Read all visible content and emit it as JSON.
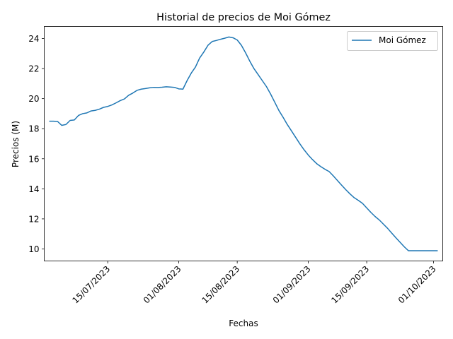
{
  "chart_data": {
    "type": "line",
    "title": "Historial de precios de Moi Gómez",
    "xlabel": "Fechas",
    "ylabel": "Precios (M)",
    "ylim": [
      9.2,
      24.8
    ],
    "x_tick_labels": [
      "15/07/2023",
      "01/08/2023",
      "15/08/2023",
      "01/09/2023",
      "15/09/2023",
      "01/10/2023"
    ],
    "x_tick_days": [
      14,
      31,
      45,
      62,
      76,
      92
    ],
    "y_ticks": [
      10,
      12,
      14,
      16,
      18,
      20,
      22,
      24
    ],
    "legend": {
      "position": "top-right",
      "entries": [
        "Moi Gómez"
      ]
    },
    "colors": {
      "line": "#1f77b4"
    },
    "series": [
      {
        "name": "Moi Gómez",
        "x_days": [
          0.0,
          1.0,
          2.0,
          3.0,
          4.0,
          5.0,
          6.0,
          7.0,
          8.0,
          9.0,
          10.0,
          11.0,
          12.0,
          13.0,
          14.0,
          15.0,
          16.0,
          17.0,
          18.0,
          19.0,
          20.0,
          21.0,
          22.0,
          23.0,
          24.0,
          25.0,
          26.0,
          27.0,
          28.0,
          29.0,
          30.0,
          31.0,
          32.0,
          33.0,
          34.0,
          35.0,
          36.0,
          37.0,
          38.0,
          39.0,
          40.0,
          41.0,
          42.0,
          43.0,
          44.0,
          45.0,
          46.0,
          47.0,
          48.0,
          49.0,
          50.0,
          51.0,
          52.0,
          53.0,
          54.0,
          55.0,
          56.0,
          57.0,
          58.0,
          59.0,
          60.0,
          61.0,
          62.0,
          63.0,
          64.0,
          65.0,
          66.0,
          67.0,
          68.0,
          69.0,
          70.0,
          71.0,
          72.0,
          73.0,
          74.0,
          75.0,
          76.0,
          77.0,
          78.0,
          79.0,
          80.0,
          81.0,
          82.0,
          83.0,
          84.0,
          85.0,
          86.0,
          87.0,
          88.0,
          89.0,
          90.0,
          91.0,
          92.0,
          93.0
        ],
        "values": [
          18.5,
          18.5,
          18.48,
          18.22,
          18.28,
          18.55,
          18.58,
          18.88,
          19.0,
          19.05,
          19.18,
          19.22,
          19.3,
          19.42,
          19.48,
          19.58,
          19.72,
          19.87,
          19.98,
          20.22,
          20.37,
          20.55,
          20.63,
          20.67,
          20.72,
          20.75,
          20.74,
          20.76,
          20.79,
          20.77,
          20.75,
          20.65,
          20.63,
          21.2,
          21.7,
          22.1,
          22.7,
          23.1,
          23.55,
          23.8,
          23.87,
          23.95,
          24.02,
          24.1,
          24.05,
          23.9,
          23.55,
          23.05,
          22.5,
          22.0,
          21.6,
          21.2,
          20.8,
          20.3,
          19.75,
          19.2,
          18.75,
          18.27,
          17.85,
          17.42,
          16.99,
          16.6,
          16.25,
          15.95,
          15.68,
          15.48,
          15.3,
          15.15,
          14.86,
          14.55,
          14.24,
          13.94,
          13.66,
          13.41,
          13.23,
          13.03,
          12.73,
          12.43,
          12.16,
          11.93,
          11.65,
          11.37,
          11.05,
          10.74,
          10.44,
          10.14,
          9.88,
          9.88,
          9.88,
          9.88,
          9.88,
          9.88,
          9.88,
          9.88
        ]
      }
    ]
  }
}
